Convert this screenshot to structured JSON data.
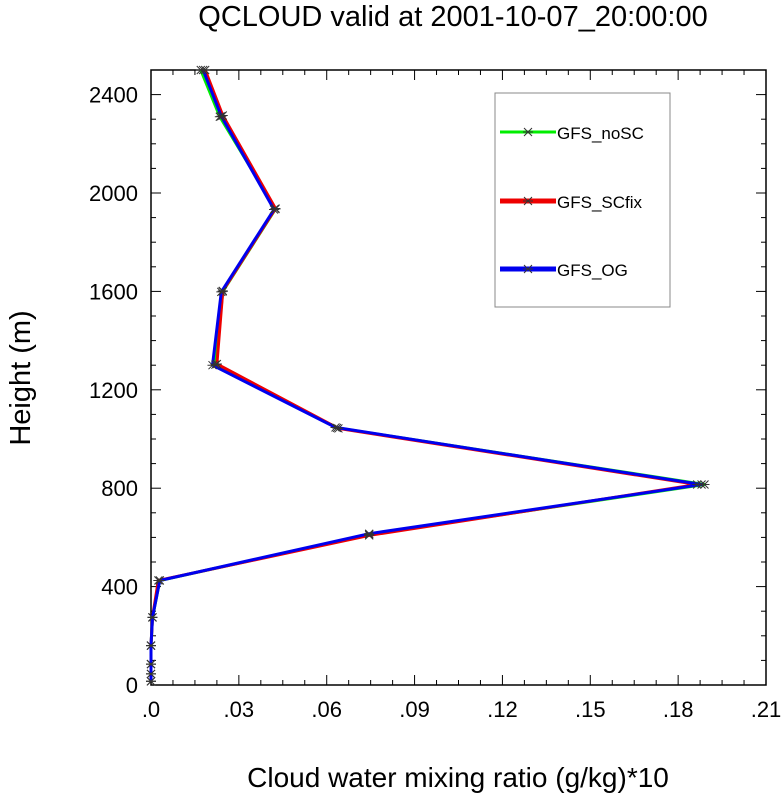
{
  "chart_data": {
    "type": "line",
    "title": "QCLOUD valid at 2001-10-07_20:00:00",
    "xlabel": "Cloud water mixing ratio (g/kg)*10",
    "ylabel": "Height (m)",
    "xlim": [
      0,
      0.21
    ],
    "ylim": [
      0,
      2500
    ],
    "x_ticks": [
      0,
      0.03,
      0.06,
      0.09,
      0.12,
      0.15,
      0.18,
      0.21
    ],
    "x_tick_labels": [
      ".0",
      ".03",
      ".06",
      ".09",
      ".12",
      ".15",
      ".18",
      ".21"
    ],
    "y_ticks": [
      0,
      400,
      800,
      1200,
      1600,
      2000,
      2400
    ],
    "y_tick_labels": [
      "0",
      "400",
      "800",
      "1200",
      "1600",
      "2000",
      "2400"
    ],
    "grid": false,
    "legend": "top-right",
    "series": [
      {
        "name": "GFS_noSC",
        "color": "#00ee00",
        "points": [
          [
            0,
            15
          ],
          [
            0,
            45
          ],
          [
            0,
            85
          ],
          [
            0,
            160
          ],
          [
            0.0005,
            275
          ],
          [
            0.003,
            425
          ],
          [
            0.0745,
            612
          ],
          [
            0.189,
            815
          ],
          [
            0.0635,
            1045
          ],
          [
            0.022,
            1302
          ],
          [
            0.0245,
            1600
          ],
          [
            0.0425,
            1935
          ],
          [
            0.0235,
            2310
          ],
          [
            0.017,
            2500
          ]
        ]
      },
      {
        "name": "GFS_SCfix",
        "color": "#ee0000",
        "points": [
          [
            0,
            15
          ],
          [
            0,
            45
          ],
          [
            0,
            85
          ],
          [
            0,
            160
          ],
          [
            0.0005,
            275
          ],
          [
            0.0025,
            425
          ],
          [
            0.0745,
            608
          ],
          [
            0.1865,
            815
          ],
          [
            0.064,
            1043
          ],
          [
            0.0225,
            1305
          ],
          [
            0.0245,
            1602
          ],
          [
            0.0425,
            1937
          ],
          [
            0.0245,
            2315
          ],
          [
            0.0185,
            2500
          ]
        ]
      },
      {
        "name": "GFS_OG",
        "color": "#0000ee",
        "points": [
          [
            0,
            15
          ],
          [
            0,
            45
          ],
          [
            0,
            85
          ],
          [
            0,
            160
          ],
          [
            0.0005,
            275
          ],
          [
            0.003,
            425
          ],
          [
            0.0745,
            615
          ],
          [
            0.188,
            815
          ],
          [
            0.063,
            1047
          ],
          [
            0.021,
            1300
          ],
          [
            0.024,
            1598
          ],
          [
            0.042,
            1933
          ],
          [
            0.024,
            2312
          ],
          [
            0.0178,
            2500
          ]
        ]
      }
    ]
  }
}
